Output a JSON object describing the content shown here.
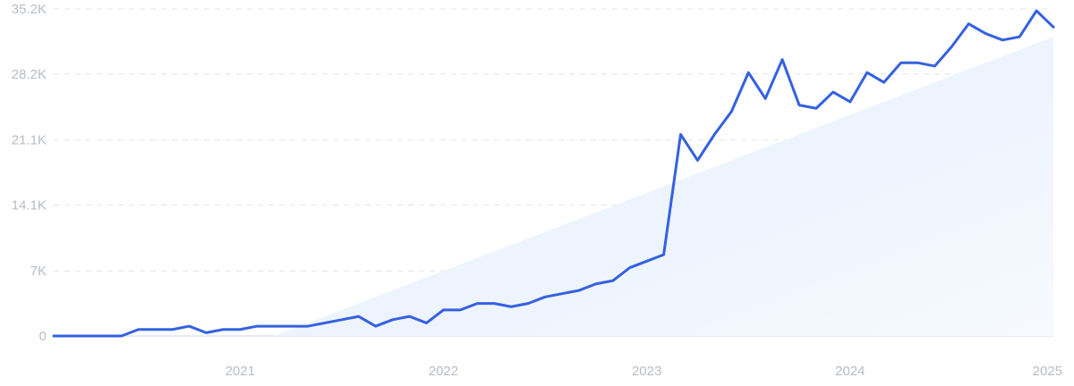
{
  "chart_data": {
    "type": "line",
    "title": "",
    "xlabel": "",
    "ylabel": "",
    "ylim": [
      0,
      35200
    ],
    "xlim": [
      "2020-02",
      "2025-01"
    ],
    "y_ticks": [
      {
        "value": 0,
        "label": "0"
      },
      {
        "value": 7000,
        "label": "7K"
      },
      {
        "value": 14100,
        "label": "14.1K"
      },
      {
        "value": 21100,
        "label": "21.1K"
      },
      {
        "value": 28200,
        "label": "28.2K"
      },
      {
        "value": 35200,
        "label": "35.2K"
      }
    ],
    "x_ticks": [
      {
        "value": "2021-01",
        "label": "2021"
      },
      {
        "value": "2022-01",
        "label": "2022"
      },
      {
        "value": "2023-01",
        "label": "2023"
      },
      {
        "value": "2024-01",
        "label": "2024"
      },
      {
        "value": "2025-01",
        "label": "2025"
      }
    ],
    "grid": true,
    "legend": "none",
    "line_color": "#3461e0",
    "trend_fill_color": "#e8f1fd",
    "series": [
      {
        "x": [
          "2020-02",
          "2020-03",
          "2020-04",
          "2020-05",
          "2020-06",
          "2020-07",
          "2020-08",
          "2020-09",
          "2020-10",
          "2020-11",
          "2020-12",
          "2021-01",
          "2021-02",
          "2021-03",
          "2021-04",
          "2021-05",
          "2021-06",
          "2021-07",
          "2021-08",
          "2021-09",
          "2021-10",
          "2021-11",
          "2021-12",
          "2022-01",
          "2022-02",
          "2022-03",
          "2022-04",
          "2022-05",
          "2022-06",
          "2022-07",
          "2022-08",
          "2022-09",
          "2022-10",
          "2022-11",
          "2022-12",
          "2023-01",
          "2023-02",
          "2023-03",
          "2023-04",
          "2023-05",
          "2023-06",
          "2023-07",
          "2023-08",
          "2023-09",
          "2023-10",
          "2023-11",
          "2023-12",
          "2024-01",
          "2024-02",
          "2024-03",
          "2024-04",
          "2024-05",
          "2024-06",
          "2024-07",
          "2024-08",
          "2024-09",
          "2024-10",
          "2024-11",
          "2024-12",
          "2025-01"
        ],
        "values": [
          0,
          0,
          0,
          0,
          0,
          700,
          700,
          700,
          1050,
          350,
          700,
          700,
          1050,
          1050,
          1050,
          1050,
          1400,
          1750,
          2100,
          1050,
          1750,
          2100,
          1400,
          2800,
          2800,
          3500,
          3500,
          3150,
          3500,
          4200,
          4550,
          4900,
          5600,
          5950,
          7350,
          8050,
          8750,
          21700,
          18900,
          21700,
          24150,
          28350,
          25550,
          29750,
          24850,
          24500,
          26250,
          25200,
          28350,
          27300,
          29400,
          29400,
          29050,
          31150,
          33600,
          32550,
          31850,
          32200,
          35000,
          33250
        ]
      }
    ],
    "trend_band": {
      "x": [
        "2021-03",
        "2025-01"
      ],
      "values": [
        0,
        32200
      ]
    }
  }
}
